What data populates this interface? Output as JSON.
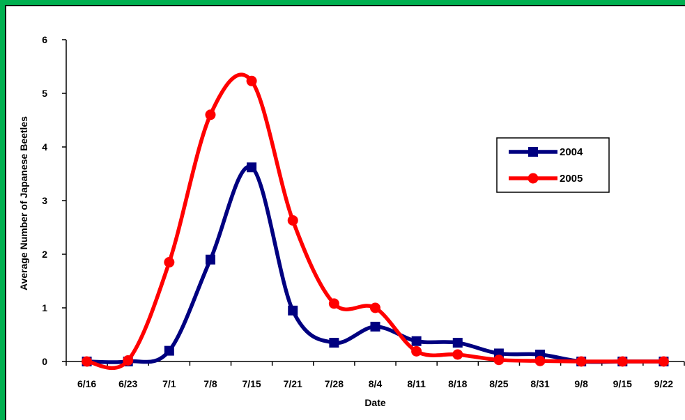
{
  "colors": {
    "frame": "#00b050",
    "background": "#ffffff",
    "series_2004": "#000080",
    "series_2005": "#ff0000"
  },
  "chart_data": {
    "type": "line",
    "title": "",
    "xlabel": "Date",
    "ylabel": "Average Number of Japanese Beetles",
    "categories": [
      "6/16",
      "6/23",
      "7/1",
      "7/8",
      "7/15",
      "7/21",
      "7/28",
      "8/4",
      "8/11",
      "8/18",
      "8/25",
      "8/31",
      "9/8",
      "9/15",
      "9/22"
    ],
    "ylim": [
      0,
      6
    ],
    "yticks": [
      "0",
      "1",
      "2",
      "3",
      "4",
      "5",
      "6"
    ],
    "grid": false,
    "smooth": true,
    "legend_position": "right",
    "series": [
      {
        "name": "2004",
        "marker": "square",
        "color": "#000080",
        "values": [
          0,
          0,
          0.2,
          1.9,
          3.62,
          0.95,
          0.35,
          0.65,
          0.38,
          0.35,
          0.15,
          0.13,
          0,
          0,
          0
        ]
      },
      {
        "name": "2005",
        "marker": "circle",
        "color": "#ff0000",
        "values": [
          0,
          0.02,
          1.85,
          4.6,
          5.23,
          2.63,
          1.08,
          1.0,
          0.19,
          0.13,
          0.03,
          0.01,
          0,
          0,
          0
        ]
      }
    ]
  }
}
